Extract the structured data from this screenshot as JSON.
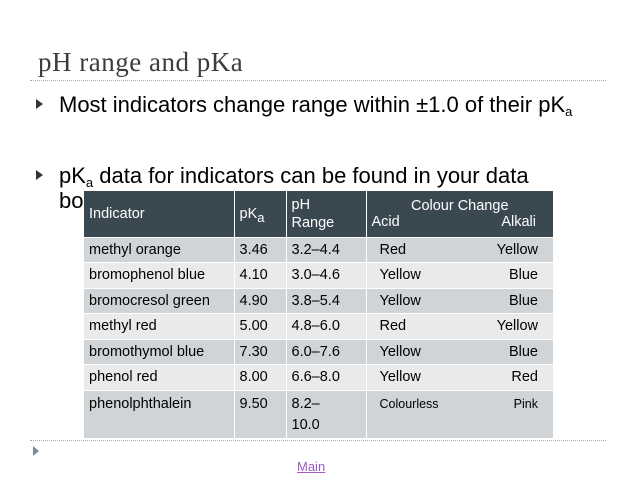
{
  "slide": {
    "title": "pH range and pKa",
    "bullet1": {
      "text": "Most indicators change range within ±1.0 of their pK",
      "sub": "a"
    },
    "bullet2": {
      "prefix": "pK",
      "sub": "a",
      "text": " data for indicators can be found in your data",
      "line2": "booklet"
    }
  },
  "table": {
    "headers": {
      "indicator": "Indicator",
      "pka": "pK",
      "pka_sub": "a",
      "ph_line1": "pH",
      "ph_line2": "Range",
      "colour_change": "Colour Change",
      "acid": "Acid",
      "alkali": "Alkali"
    },
    "rows": [
      {
        "indicator": "methyl orange",
        "pka": "3.46",
        "range": "3.2–4.4",
        "acid": "Red",
        "alkali": "Yellow"
      },
      {
        "indicator": "bromophenol blue",
        "pka": "4.10",
        "range": "3.0–4.6",
        "acid": "Yellow",
        "alkali": "Blue"
      },
      {
        "indicator": "bromocresol green",
        "pka": "4.90",
        "range": "3.8–5.4",
        "acid": "Yellow",
        "alkali": "Blue"
      },
      {
        "indicator": "methyl red",
        "pka": "5.00",
        "range": "4.8–6.0",
        "acid": "Red",
        "alkali": "Yellow"
      },
      {
        "indicator": "bromothymol blue",
        "pka": "7.30",
        "range": "6.0–7.6",
        "acid": "Yellow",
        "alkali": "Blue"
      },
      {
        "indicator": "phenol red",
        "pka": "8.00",
        "range": "6.6–8.0",
        "acid": "Yellow",
        "alkali": "Red"
      },
      {
        "indicator": "phenolphthalein",
        "pka": "9.50",
        "range_line1": "8.2–",
        "range_line2": "10.0",
        "acid": "Colourless",
        "alkali": "Pink"
      }
    ]
  },
  "footer": {
    "link": "Main"
  }
}
